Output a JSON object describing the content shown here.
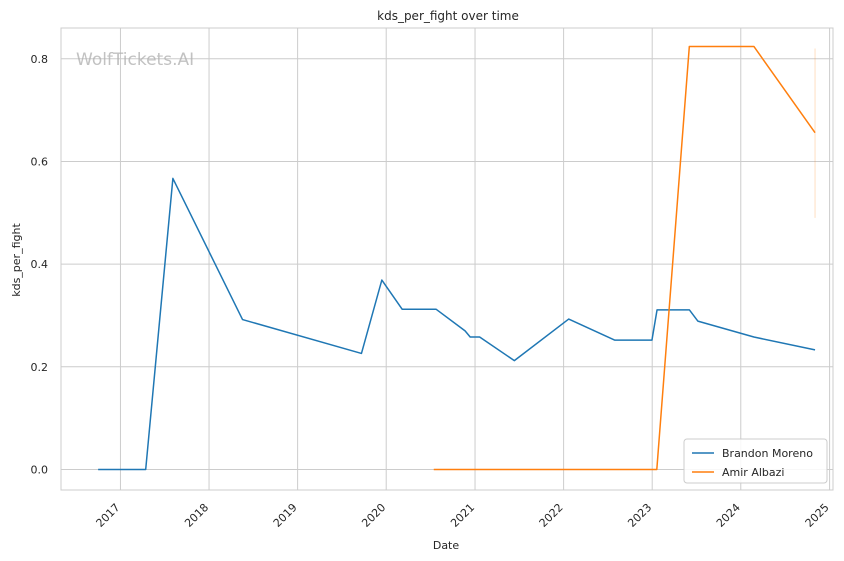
{
  "watermark": "WolfTickets.AI",
  "chart_data": {
    "type": "line",
    "title": "kds_per_fight over time",
    "xlabel": "Date",
    "ylabel": "kds_per_fight",
    "x_scale": "date",
    "xlim": [
      "2016-05-01",
      "2025-01-15"
    ],
    "ylim": [
      -0.04,
      0.86
    ],
    "x_ticks": [
      "2017",
      "2018",
      "2019",
      "2020",
      "2021",
      "2022",
      "2023",
      "2024",
      "2025"
    ],
    "y_ticks": [
      "0.0",
      "0.2",
      "0.4",
      "0.6",
      "0.8"
    ],
    "grid": true,
    "legend_position": "lower-right",
    "series": [
      {
        "name": "Brandon Moreno",
        "color": "#1f77b4",
        "points": [
          [
            "2016-10-01",
            0.0
          ],
          [
            "2017-04-15",
            0.0
          ],
          [
            "2017-08-05",
            0.567
          ],
          [
            "2018-05-19",
            0.292
          ],
          [
            "2019-09-21",
            0.226
          ],
          [
            "2019-12-14",
            0.369
          ],
          [
            "2020-03-07",
            0.312
          ],
          [
            "2020-07-25",
            0.312
          ],
          [
            "2020-11-21",
            0.27
          ],
          [
            "2020-12-12",
            0.258
          ],
          [
            "2021-01-20",
            0.258
          ],
          [
            "2021-06-12",
            0.212
          ],
          [
            "2022-01-22",
            0.293
          ],
          [
            "2022-07-30",
            0.252
          ],
          [
            "2022-12-31",
            0.252
          ],
          [
            "2023-01-21",
            0.311
          ],
          [
            "2023-06-03",
            0.311
          ],
          [
            "2023-07-08",
            0.289
          ],
          [
            "2024-02-24",
            0.258
          ],
          [
            "2024-11-02",
            0.233
          ]
        ]
      },
      {
        "name": "Amir Albazi",
        "color": "#ff7f0e",
        "points": [
          [
            "2020-07-15",
            0.0
          ],
          [
            "2023-01-20",
            0.0
          ],
          [
            "2023-06-03",
            0.824
          ],
          [
            "2024-02-24",
            0.824
          ],
          [
            "2024-11-02",
            0.656
          ]
        ]
      }
    ],
    "annotations": [
      {
        "type": "vertical-band",
        "x": "2024-11-02",
        "y_range": [
          0.49,
          0.82
        ],
        "color": "#ff7f0e"
      }
    ]
  }
}
